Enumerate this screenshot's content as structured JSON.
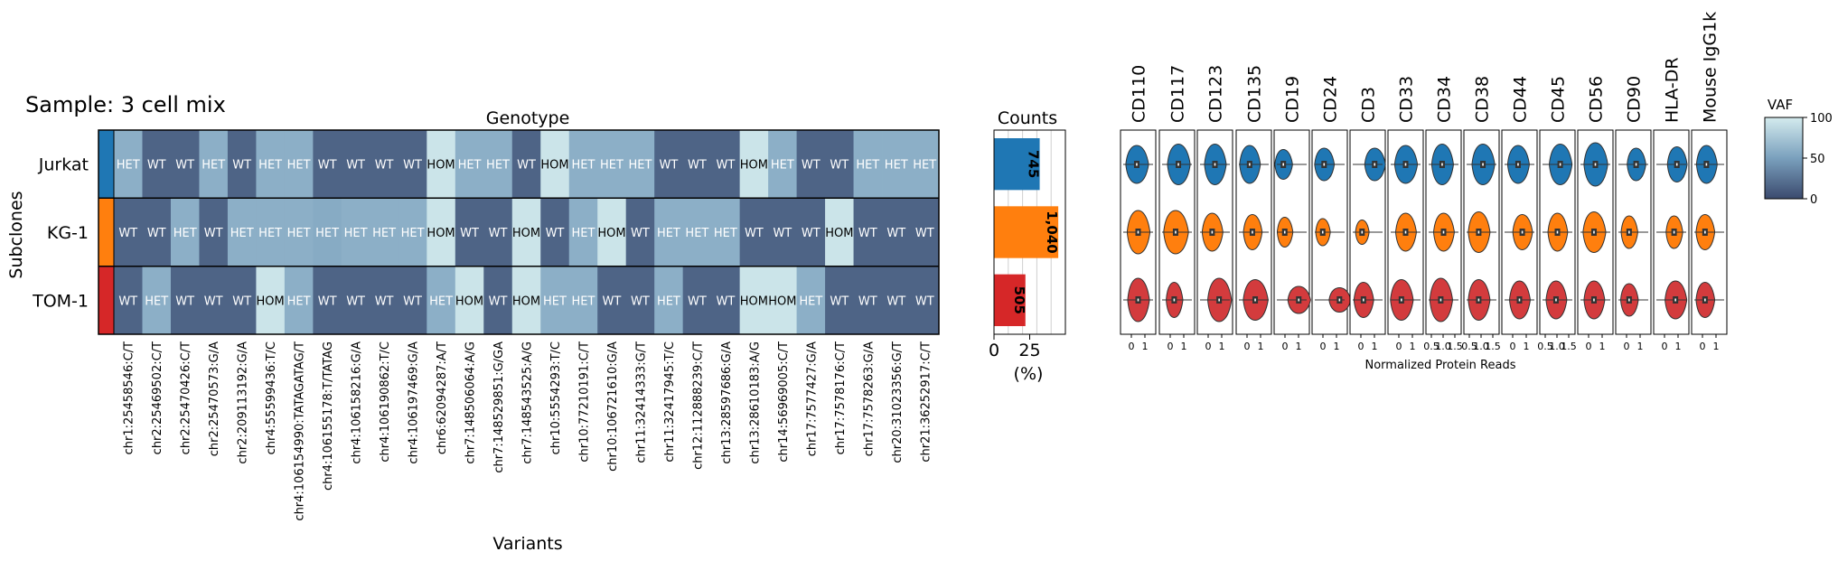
{
  "sample_title": "Sample: 3 cell mix",
  "colors": {
    "WT": "#3b4a6e",
    "HET": "#7aa0bd",
    "HOM": "#d4ebee",
    "Jurkat": "#1f77b4",
    "KG-1": "#ff7f0e",
    "TOM-1": "#d62728",
    "violin_red": "#d33b3d"
  },
  "chart_data": [
    {
      "type": "heatmap",
      "title": "Genotype",
      "xlabel": "Variants",
      "ylabel": "Subclones",
      "rows": [
        "Jurkat",
        "KG-1",
        "TOM-1"
      ],
      "columns": [
        "chr1:25458546:C/T",
        "chr2:25469502:C/T",
        "chr2:25470426:C/T",
        "chr2:25470573:G/A",
        "chr2:209113192:G/A",
        "chr4:55599436:T/C",
        "chr4:106154990:TATAGATAG/T",
        "chr4:106155178:T/TATAG",
        "chr4:106158216:G/A",
        "chr4:106190862:T/C",
        "chr4:106197469:G/A",
        "chr6:62094287:A/T",
        "chr7:148506064:A/G",
        "chr7:148529851:G/GA",
        "chr7:148543525:A/G",
        "chr10:5554293:T/C",
        "chr10:77210191:C/T",
        "chr10:106721610:G/A",
        "chr11:32414333:G/T",
        "chr11:32417945:T/C",
        "chr12:112888239:C/T",
        "chr13:28597686:G/A",
        "chr13:28610183:A/G",
        "chr14:56969005:C/T",
        "chr17:7577427:G/A",
        "chr17:7578176:C/T",
        "chr17:7578263:G/A",
        "chr20:31023356:G/T",
        "chr21:36252917:C/T"
      ],
      "values": [
        [
          "HET",
          "WT",
          "WT",
          "HET",
          "WT",
          "HET",
          "HET",
          "WT",
          "WT",
          "WT",
          "WT",
          "HOM",
          "HET",
          "HET",
          "WT",
          "HOM",
          "HET",
          "HET",
          "HET",
          "WT",
          "WT",
          "WT",
          "HOM",
          "HET",
          "WT",
          "WT",
          "HET",
          "HET",
          "HET"
        ],
        [
          "WT",
          "WT",
          "HET",
          "WT",
          "HET",
          "HET",
          "HET",
          "HET",
          "HET",
          "HET",
          "HET",
          "HOM",
          "WT",
          "WT",
          "HOM",
          "WT",
          "HET",
          "HOM",
          "WT",
          "HET",
          "HET",
          "HET",
          "WT",
          "WT",
          "WT",
          "HOM",
          "WT",
          "WT",
          "WT"
        ],
        [
          "WT",
          "HET",
          "WT",
          "WT",
          "WT",
          "HOM",
          "HET",
          "WT",
          "WT",
          "WT",
          "WT",
          "HET",
          "HOM",
          "WT",
          "HOM",
          "HET",
          "HET",
          "WT",
          "WT",
          "HET",
          "WT",
          "WT",
          "HOM",
          "HOM",
          "HET",
          "WT",
          "WT",
          "WT",
          "WT"
        ]
      ],
      "vaf": [
        [
          60,
          15,
          15,
          60,
          15,
          60,
          60,
          15,
          15,
          15,
          15,
          95,
          60,
          60,
          15,
          95,
          60,
          60,
          60,
          15,
          15,
          15,
          95,
          60,
          15,
          15,
          60,
          60,
          60
        ],
        [
          15,
          15,
          60,
          15,
          60,
          60,
          60,
          57,
          60,
          60,
          60,
          95,
          15,
          15,
          95,
          15,
          60,
          95,
          15,
          60,
          60,
          60,
          15,
          15,
          15,
          95,
          15,
          15,
          15
        ],
        [
          15,
          60,
          15,
          15,
          15,
          95,
          60,
          15,
          15,
          15,
          15,
          60,
          95,
          15,
          95,
          60,
          60,
          15,
          15,
          60,
          15,
          15,
          95,
          95,
          60,
          15,
          15,
          15,
          15
        ]
      ]
    },
    {
      "type": "bar",
      "title": "Counts",
      "xlabel": "(%)",
      "categories": [
        "Jurkat",
        "KG-1",
        "TOM-1"
      ],
      "values": [
        32,
        45,
        22
      ],
      "labels": [
        "745",
        "1,040",
        "505"
      ],
      "xticks": [
        "0",
        "25"
      ],
      "xlim": [
        0,
        50
      ]
    },
    {
      "type": "violin",
      "xlabel": "Normalized Protein Reads",
      "proteins": [
        "CD110",
        "CD117",
        "CD123",
        "CD135",
        "CD19",
        "CD24",
        "CD3",
        "CD33",
        "CD34",
        "CD38",
        "CD44",
        "CD45",
        "CD56",
        "CD90",
        "HLA-DR",
        "Mouse IgG1k"
      ],
      "xticks": [
        [
          "0",
          "1"
        ],
        [
          "0",
          "1"
        ],
        [
          "0",
          "1"
        ],
        [
          "0",
          "1"
        ],
        [
          "0",
          "1"
        ],
        [
          "0",
          "1"
        ],
        [
          "0",
          "1"
        ],
        [
          "0",
          "1"
        ],
        [
          "0.5",
          "1.0",
          "1.5"
        ],
        [
          "0.5",
          "1.0",
          "1.5"
        ],
        [
          "0",
          "1"
        ],
        [
          "0.5",
          "1.0",
          "1.5"
        ],
        [
          "0",
          "1"
        ],
        [
          "0",
          "1"
        ],
        [
          "0",
          "1"
        ],
        [
          "0",
          "1"
        ]
      ]
    },
    {
      "type": "colorbar",
      "title": "VAF",
      "ticks": [
        "100",
        "50",
        "0"
      ]
    }
  ]
}
